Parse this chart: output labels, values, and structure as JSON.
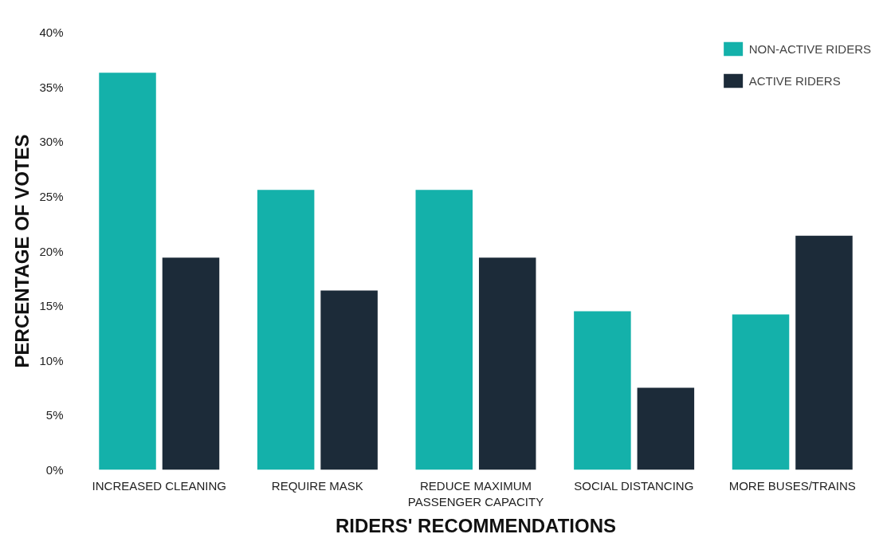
{
  "chart_data": {
    "type": "bar",
    "xlabel": "RIDERS' RECOMMENDATIONS",
    "ylabel": "PERCENTAGE OF VOTES",
    "categories": [
      "INCREASED CLEANING",
      "REQUIRE MASK",
      "REDUCE MAXIMUM\nPASSENGER CAPACITY",
      "SOCIAL DISTANCING",
      "MORE BUSES/TRAINS"
    ],
    "series": [
      {
        "name": "NON-ACTIVE RIDERS",
        "color": "#14b1aa",
        "values": [
          36.3,
          25.6,
          25.6,
          14.5,
          14.2
        ]
      },
      {
        "name": "ACTIVE RIDERS",
        "color": "#1c2b39",
        "values": [
          19.4,
          16.4,
          19.4,
          7.5,
          21.4
        ]
      }
    ],
    "ylim": [
      0,
      40
    ],
    "yticks": [
      {
        "value": 0,
        "label": "0%"
      },
      {
        "value": 5,
        "label": "5%"
      },
      {
        "value": 10,
        "label": "10%"
      },
      {
        "value": 15,
        "label": "15%"
      },
      {
        "value": 20,
        "label": "20%"
      },
      {
        "value": 25,
        "label": "25%"
      },
      {
        "value": 30,
        "label": "30%"
      },
      {
        "value": 35,
        "label": "35%"
      },
      {
        "value": 40,
        "label": "40%"
      }
    ],
    "grid": false,
    "legend": "top right"
  }
}
